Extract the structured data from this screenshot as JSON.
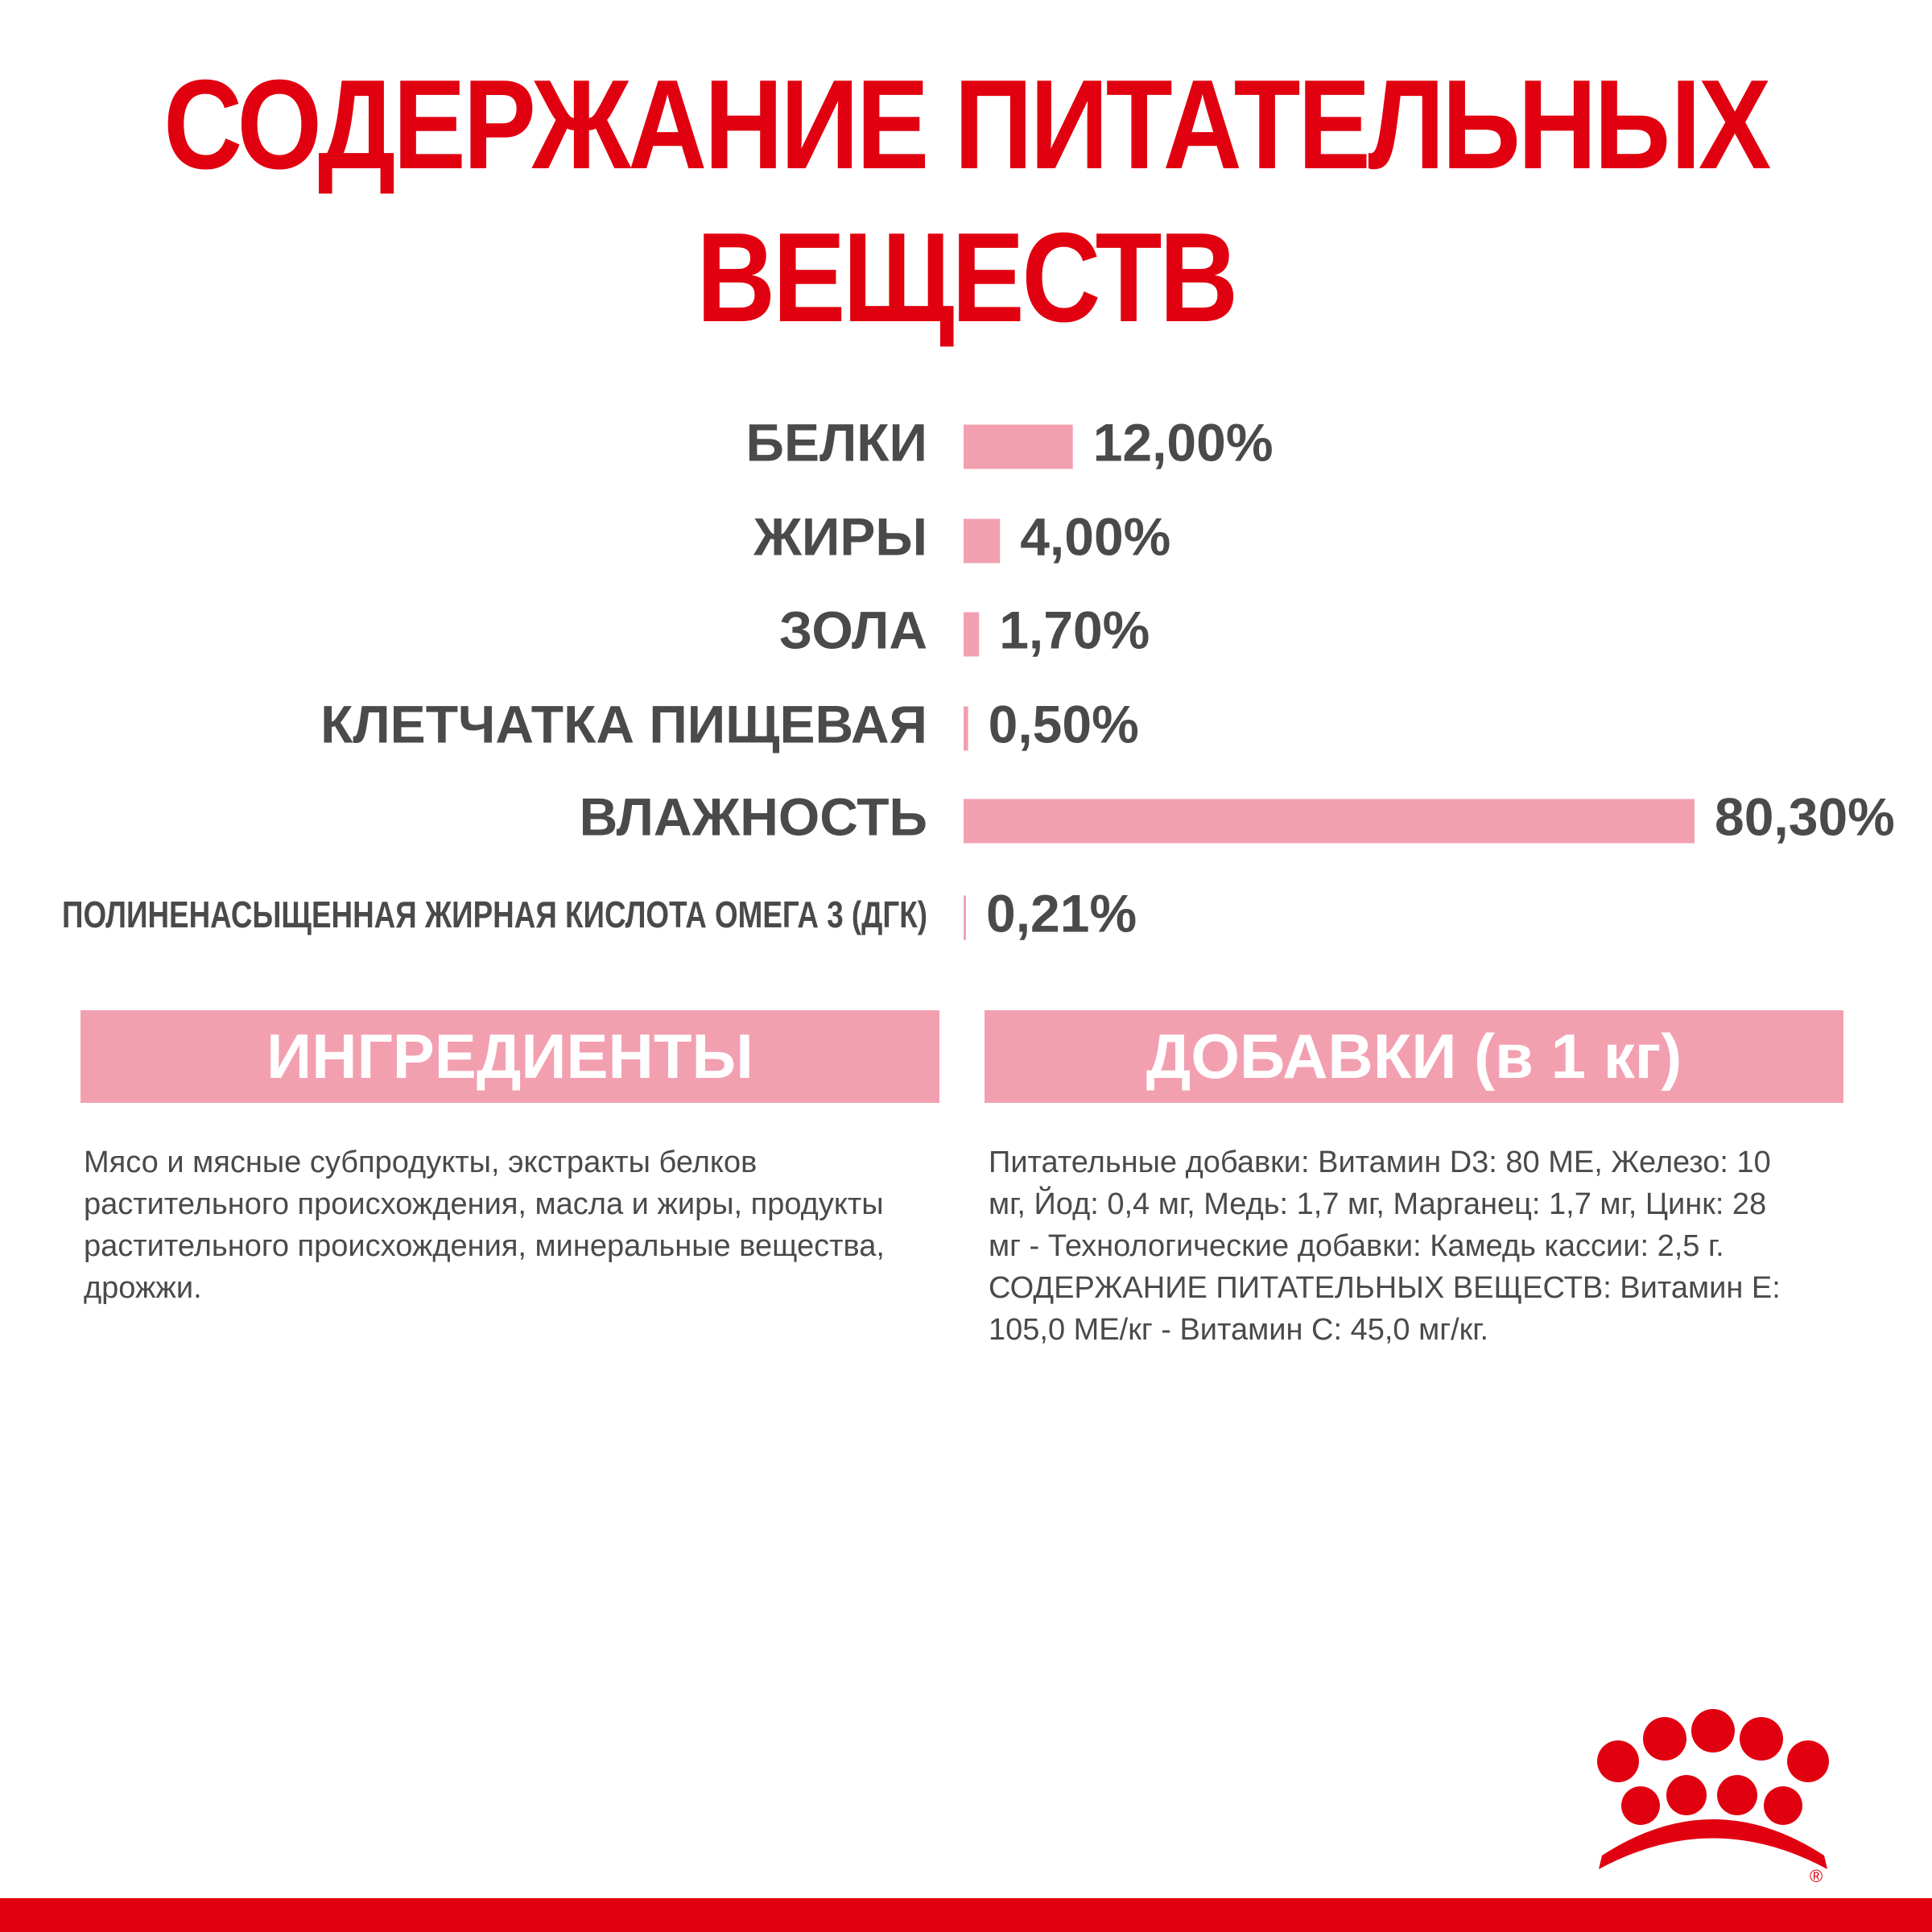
{
  "title_line1": "СОДЕРЖАНИЕ ПИТАТЕЛЬНЫХ",
  "title_line2": "ВЕЩЕСТВ",
  "colors": {
    "brand": "#e1000f",
    "bar": "#f2a0b0",
    "text": "#4a4a4a"
  },
  "chart_data": {
    "type": "bar",
    "orientation": "horizontal",
    "categories": [
      "БЕЛКИ",
      "ЖИРЫ",
      "ЗОЛА",
      "КЛЕТЧАТКА ПИЩЕВАЯ",
      "ВЛАЖНОСТЬ",
      "ПОЛИНЕНАСЫЩЕННАЯ ЖИРНАЯ КИСЛОТА ОМЕГА 3 (ДГК)"
    ],
    "values": [
      12.0,
      4.0,
      1.7,
      0.5,
      80.3,
      0.21
    ],
    "value_labels": [
      "12,00%",
      "4,00%",
      "1,70%",
      "0,50%",
      "80,30%",
      "0,21%"
    ],
    "unit": "%",
    "grid": false
  },
  "ingredients": {
    "header": "ИНГРЕДИЕНТЫ",
    "text": "Мясо и мясные субпродукты, экстракты белков растительного происхождения, масла и жиры, продукты растительного происхождения, минеральные вещества, дрожжи."
  },
  "additives": {
    "header": "ДОБАВКИ (в 1 кг)",
    "text": "Питательные добавки: Витамин D3: 80 МЕ, Железо: 10 мг, Йод: 0,4 мг, Медь: 1,7 мг, Марганец: 1,7 мг, Цинк: 28 мг - Технологические добавки: Камедь кассии: 2,5 г. СОДЕРЖАНИЕ ПИТАТЕЛЬНЫХ ВЕЩЕСТВ: Витамин E: 105,0 МЕ/кг - Витамин C: 45,0 мг/кг."
  },
  "logo": {
    "icon": "royal-canin-crown-icon",
    "registered_mark": "®"
  }
}
